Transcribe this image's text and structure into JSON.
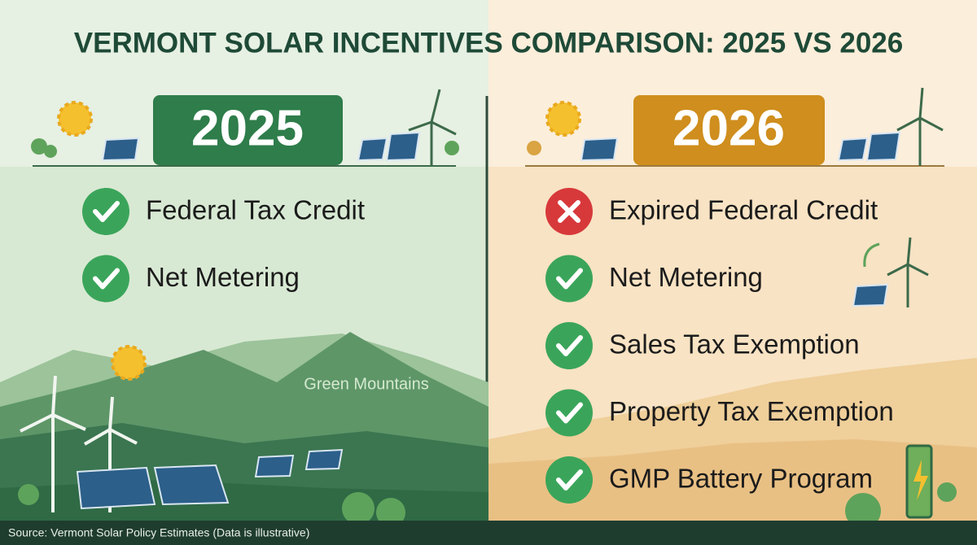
{
  "header": {
    "title": "VERMONT SOLAR INCENTIVES COMPARISON: 2025 VS 2026"
  },
  "left": {
    "year": "2025",
    "items": [
      {
        "label": "Federal Tax Credit",
        "status": "check"
      },
      {
        "label": "Net Metering",
        "status": "check"
      }
    ],
    "scene_label": "Green Mountains"
  },
  "right": {
    "year": "2026",
    "items": [
      {
        "label": "Expired Federal Credit",
        "status": "cross"
      },
      {
        "label": "Net Metering",
        "status": "check"
      },
      {
        "label": "Sales Tax Exemption",
        "status": "check"
      },
      {
        "label": "Property Tax Exemption",
        "status": "check"
      },
      {
        "label": "GMP Battery Program",
        "status": "check"
      }
    ]
  },
  "footer": {
    "source": "Source: Vermont Solar Policy Estimates (Data is illustrative)"
  }
}
